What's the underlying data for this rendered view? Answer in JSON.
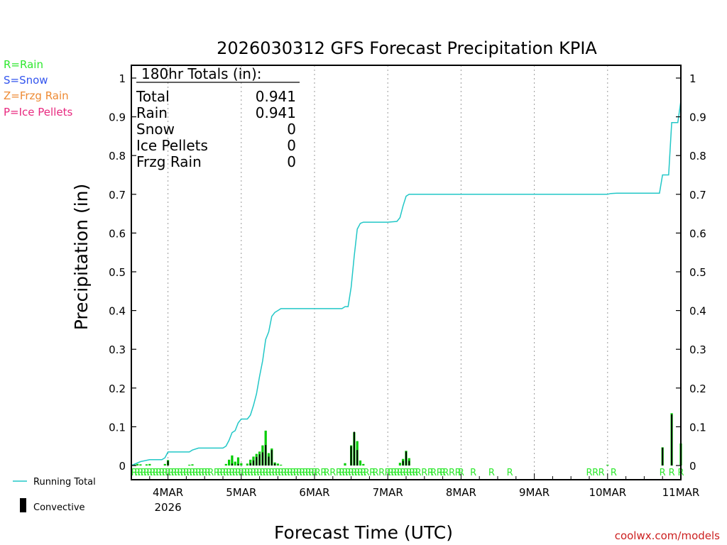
{
  "chart_data": {
    "type": "bar+line",
    "title": "2026030312 GFS Forecast Precipitation KPIA",
    "xlabel": "Forecast Time (UTC)",
    "ylabel": "Precipitation (in)",
    "ylim": [
      0,
      1.05
    ],
    "yticks": [
      0,
      0.1,
      0.2,
      0.3,
      0.4,
      0.5,
      0.6,
      0.7,
      0.8,
      0.9,
      1
    ],
    "ytick_labels": [
      "0",
      "0.1",
      "0.2",
      "0.3",
      "0.4",
      "0.5",
      "0.6",
      "0.7",
      "0.8",
      "0.9",
      "1"
    ],
    "xlim_hours": [
      0,
      180
    ],
    "xticks": [
      {
        "hour": 12,
        "label": "4MAR",
        "sublabel": "2026"
      },
      {
        "hour": 36,
        "label": "5MAR",
        "sublabel": ""
      },
      {
        "hour": 60,
        "label": "6MAR",
        "sublabel": ""
      },
      {
        "hour": 84,
        "label": "7MAR",
        "sublabel": ""
      },
      {
        "hour": 108,
        "label": "8MAR",
        "sublabel": ""
      },
      {
        "hour": 132,
        "label": "9MAR",
        "sublabel": ""
      },
      {
        "hour": 156,
        "label": "10MAR",
        "sublabel": ""
      },
      {
        "hour": 180,
        "label": "11MAR",
        "sublabel": ""
      }
    ],
    "legend_types": [
      {
        "text": "R=Rain",
        "color": "#2ee82e"
      },
      {
        "text": "S=Snow",
        "color": "#3355ee"
      },
      {
        "text": "Z=Frzg Rain",
        "color": "#ee8a33"
      },
      {
        "text": "P=Ice Pellets",
        "color": "#e8287f"
      }
    ],
    "legend_series": [
      {
        "text": "Running Total",
        "color": "#22c7c7"
      },
      {
        "text": "Convective",
        "color": "#000000"
      }
    ],
    "totals": {
      "header": "180hr Totals (in):",
      "rows": [
        {
          "label": "Total",
          "value": "0.941"
        },
        {
          "label": "Rain",
          "value": "0.941"
        },
        {
          "label": "Snow",
          "value": "0"
        },
        {
          "label": "Ice Pellets",
          "value": "0"
        },
        {
          "label": "Frzg Rain",
          "value": "0"
        }
      ]
    },
    "series": [
      {
        "name": "Running Total",
        "color": "#22c7c7",
        "points": [
          [
            0,
            0
          ],
          [
            3,
            0.01
          ],
          [
            6,
            0.015
          ],
          [
            10,
            0.015
          ],
          [
            11,
            0.02
          ],
          [
            12,
            0.035
          ],
          [
            16,
            0.035
          ],
          [
            19,
            0.035
          ],
          [
            20,
            0.04
          ],
          [
            22,
            0.045
          ],
          [
            30,
            0.045
          ],
          [
            31,
            0.05
          ],
          [
            32,
            0.065
          ],
          [
            33,
            0.085
          ],
          [
            34,
            0.09
          ],
          [
            35,
            0.11
          ],
          [
            36,
            0.12
          ],
          [
            38,
            0.12
          ],
          [
            39,
            0.13
          ],
          [
            40,
            0.155
          ],
          [
            41,
            0.185
          ],
          [
            42,
            0.23
          ],
          [
            43,
            0.27
          ],
          [
            44,
            0.325
          ],
          [
            45,
            0.345
          ],
          [
            46,
            0.385
          ],
          [
            47,
            0.395
          ],
          [
            48,
            0.4
          ],
          [
            49,
            0.405
          ],
          [
            60,
            0.405
          ],
          [
            69,
            0.405
          ],
          [
            70,
            0.41
          ],
          [
            71,
            0.41
          ],
          [
            72,
            0.46
          ],
          [
            73,
            0.54
          ],
          [
            74,
            0.61
          ],
          [
            75,
            0.625
          ],
          [
            76,
            0.628
          ],
          [
            84,
            0.628
          ],
          [
            87,
            0.63
          ],
          [
            88,
            0.64
          ],
          [
            89,
            0.67
          ],
          [
            90,
            0.695
          ],
          [
            91,
            0.7
          ],
          [
            132,
            0.7
          ],
          [
            156,
            0.7
          ],
          [
            157,
            0.702
          ],
          [
            159,
            0.703
          ],
          [
            173,
            0.703
          ],
          [
            174,
            0.75
          ],
          [
            176,
            0.75
          ],
          [
            177,
            0.885
          ],
          [
            179,
            0.885
          ],
          [
            180,
            0.941
          ]
        ]
      },
      {
        "name": "Precipitation (Rain)",
        "color": "#00cc00",
        "bars": [
          [
            1,
            0.003
          ],
          [
            2,
            0.004
          ],
          [
            3,
            0.003
          ],
          [
            5,
            0.003
          ],
          [
            6,
            0.004
          ],
          [
            11,
            0.004
          ],
          [
            12,
            0.014
          ],
          [
            19,
            0.002
          ],
          [
            20,
            0.003
          ],
          [
            31,
            0.004
          ],
          [
            32,
            0.015
          ],
          [
            33,
            0.026
          ],
          [
            34,
            0.01
          ],
          [
            35,
            0.021
          ],
          [
            36,
            0.006
          ],
          [
            38,
            0.005
          ],
          [
            39,
            0.015
          ],
          [
            40,
            0.023
          ],
          [
            41,
            0.03
          ],
          [
            42,
            0.036
          ],
          [
            43,
            0.052
          ],
          [
            44,
            0.09
          ],
          [
            45,
            0.032
          ],
          [
            46,
            0.044
          ],
          [
            47,
            0.008
          ],
          [
            48,
            0.005
          ],
          [
            49,
            0.002
          ],
          [
            70,
            0.006
          ],
          [
            72,
            0.052
          ],
          [
            73,
            0.086
          ],
          [
            74,
            0.063
          ],
          [
            75,
            0.013
          ],
          [
            76,
            0.004
          ],
          [
            88,
            0.007
          ],
          [
            89,
            0.017
          ],
          [
            90,
            0.038
          ],
          [
            91,
            0.019
          ],
          [
            156,
            0.002
          ],
          [
            174,
            0.047
          ],
          [
            177,
            0.135
          ],
          [
            180,
            0.057
          ]
        ]
      },
      {
        "name": "Convective",
        "color": "#000000",
        "bars": [
          [
            12,
            0.012
          ],
          [
            33,
            0.005
          ],
          [
            35,
            0.004
          ],
          [
            39,
            0.006
          ],
          [
            40,
            0.013
          ],
          [
            41,
            0.022
          ],
          [
            42,
            0.029
          ],
          [
            43,
            0.034
          ],
          [
            44,
            0.053
          ],
          [
            45,
            0.023
          ],
          [
            46,
            0.04
          ],
          [
            47,
            0.005
          ],
          [
            72,
            0.05
          ],
          [
            73,
            0.087
          ],
          [
            74,
            0.04
          ],
          [
            89,
            0.012
          ],
          [
            90,
            0.036
          ],
          [
            91,
            0.012
          ],
          [
            174,
            0.046
          ],
          [
            177,
            0.132
          ]
        ]
      }
    ],
    "type_markers": {
      "color": "#2ee82e",
      "letter": "R",
      "hours": [
        1,
        2,
        3,
        4,
        5,
        6,
        7,
        8,
        9,
        10,
        11,
        12,
        13,
        14,
        15,
        16,
        17,
        18,
        19,
        20,
        21,
        22,
        23,
        24,
        25,
        26,
        28,
        29,
        30,
        31,
        32,
        33,
        34,
        35,
        36,
        37,
        38,
        39,
        40,
        41,
        42,
        43,
        44,
        45,
        46,
        47,
        48,
        49,
        50,
        51,
        52,
        53,
        54,
        55,
        56,
        57,
        58,
        59,
        60,
        61,
        63,
        64,
        66,
        68,
        69,
        70,
        71,
        72,
        73,
        74,
        75,
        76,
        77,
        79,
        80,
        82,
        84,
        85,
        86,
        87,
        88,
        89,
        90,
        91,
        92,
        93,
        94,
        96,
        98,
        99,
        101,
        102,
        103,
        105,
        107,
        108,
        112,
        118,
        124,
        150,
        152,
        154,
        158,
        174,
        177,
        180
      ]
    }
  },
  "credit": "coolwx.com/models"
}
